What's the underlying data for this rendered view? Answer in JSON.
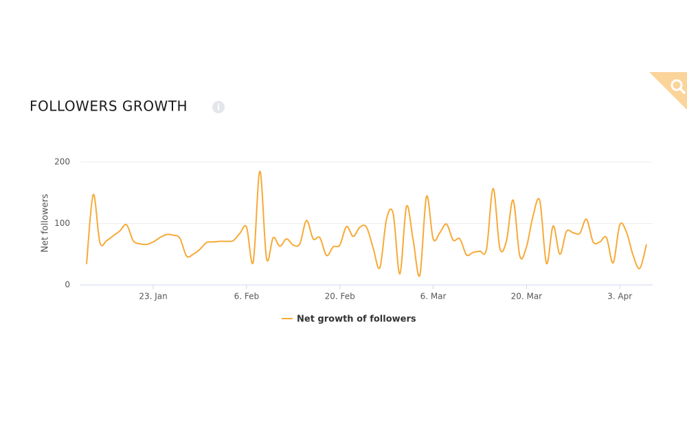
{
  "header": {
    "title": "FOLLOWERS GROWTH"
  },
  "chart_data": {
    "type": "line",
    "y_label": "Net followers",
    "categories": [
      "13. Jan",
      "14. Jan",
      "15. Jan",
      "16. Jan",
      "17. Jan",
      "18. Jan",
      "19. Jan",
      "20. Jan",
      "21. Jan",
      "22. Jan",
      "23. Jan",
      "24. Jan",
      "25. Jan",
      "26. Jan",
      "27. Jan",
      "28. Jan",
      "29. Jan",
      "30. Jan",
      "31. Jan",
      "1. Feb",
      "2. Feb",
      "3. Feb",
      "4. Feb",
      "5. Feb",
      "6. Feb",
      "7. Feb",
      "8. Feb",
      "9. Feb",
      "10. Feb",
      "11. Feb",
      "12. Feb",
      "13. Feb",
      "14. Feb",
      "15. Feb",
      "16. Feb",
      "17. Feb",
      "18. Feb",
      "19. Feb",
      "20. Feb",
      "21. Feb",
      "22. Feb",
      "23. Feb",
      "24. Feb",
      "25. Feb",
      "26. Feb",
      "27. Feb",
      "28. Feb",
      "1. Mar",
      "2. Mar",
      "3. Mar",
      "4. Mar",
      "5. Mar",
      "6. Mar",
      "7. Mar",
      "8. Mar",
      "9. Mar",
      "10. Mar",
      "11. Mar",
      "12. Mar",
      "13. Mar",
      "14. Mar",
      "15. Mar",
      "16. Mar",
      "17. Mar",
      "18. Mar",
      "19. Mar",
      "20. Mar",
      "21. Mar",
      "22. Mar",
      "23. Mar",
      "24. Mar",
      "25. Mar",
      "26. Mar",
      "27. Mar",
      "28. Mar",
      "29. Mar",
      "30. Mar",
      "31. Mar",
      "1. Apr",
      "2. Apr",
      "3. Apr",
      "4. Apr",
      "5. Apr",
      "6. Apr",
      "7. Apr"
    ],
    "series": [
      {
        "name": "Net growth of followers",
        "color": "#f7a935",
        "values": [
          34,
          147,
          69,
          72,
          80,
          88,
          98,
          72,
          67,
          66,
          70,
          77,
          82,
          81,
          76,
          47,
          50,
          58,
          69,
          70,
          71,
          71,
          72,
          84,
          94,
          37,
          185,
          43,
          77,
          63,
          75,
          65,
          67,
          105,
          75,
          77,
          48,
          62,
          65,
          95,
          79,
          94,
          94,
          60,
          28,
          107,
          116,
          18,
          128,
          73,
          16,
          144,
          75,
          85,
          99,
          73,
          75,
          49,
          53,
          55,
          58,
          157,
          60,
          72,
          138,
          47,
          62,
          113,
          137,
          35,
          96,
          50,
          87,
          85,
          84,
          107,
          70,
          70,
          77,
          36,
          98,
          86,
          48,
          27,
          66
        ]
      }
    ],
    "xticks": [
      "23. Jan",
      "6. Feb",
      "20. Feb",
      "6. Mar",
      "20. Mar",
      "3. Apr"
    ],
    "ylim": [
      0,
      200
    ],
    "yticks": [
      0,
      100,
      200
    ],
    "grid": true
  }
}
